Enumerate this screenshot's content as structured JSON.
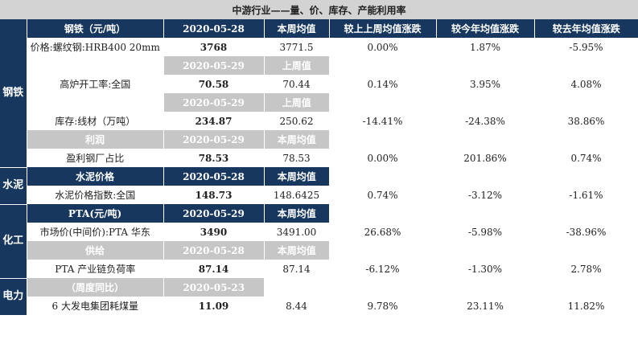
{
  "title": "中游行业——量、价、库存、产能利用率",
  "colors": {
    "header_bg": "#17375e",
    "subheader_bg": "#c6c6c6",
    "title_bg": "#d3d3d3"
  },
  "headers": {
    "category": "钢铁（元/吨）",
    "date": "2020-05-28",
    "weekly_avg": "本周均值",
    "wow": "较上上周均值涨跌",
    "ytd": "较今年均值涨跌",
    "yoy": "较去年均值涨跌"
  },
  "sectors": {
    "steel": "钢铁",
    "cement": "水泥",
    "chemicals": "化工",
    "power": "电力"
  },
  "subheaders": [
    {
      "label": "",
      "date": "2020-05-29",
      "avg": "上周值"
    },
    {
      "label": "",
      "date": "2020-05-29",
      "avg": "上周值"
    },
    {
      "label": "利润",
      "date": "2020-05-29",
      "avg": "本周均值"
    },
    {
      "label": "水泥价格",
      "date": "2020-05-28",
      "avg": "本周均值"
    },
    {
      "label": "PTA(元/吨)",
      "date": "2020-05-29",
      "avg": "本周均值"
    },
    {
      "label": "供给",
      "date": "2020-05-28",
      "avg": "本周均值"
    },
    {
      "label": "（周度同比）",
      "date": "2020-05-23",
      "avg": ""
    }
  ],
  "rows": [
    {
      "label": "价格:螺纹钢:HRB400 20mm",
      "value": "3768",
      "avg": "3771.5",
      "wow": "0.00%",
      "ytd": "1.87%",
      "yoy": "-5.95%"
    },
    {
      "label": "高炉开工率:全国",
      "value": "70.58",
      "avg": "70.44",
      "wow": "0.14%",
      "ytd": "3.95%",
      "yoy": "4.08%"
    },
    {
      "label": "库存:线材（万吨）",
      "value": "234.87",
      "avg": "250.62",
      "wow": "-14.41%",
      "ytd": "-24.38%",
      "yoy": "38.86%"
    },
    {
      "label": "盈利钢厂占比",
      "value": "78.53",
      "avg": "78.53",
      "wow": "0.00%",
      "ytd": "201.86%",
      "yoy": "0.74%"
    },
    {
      "label": "水泥价格指数:全国",
      "value": "148.73",
      "avg": "148.6425",
      "wow": "0.74%",
      "ytd": "-3.12%",
      "yoy": "-1.61%"
    },
    {
      "label": "市场价(中间价):PTA 华东",
      "value": "3490",
      "avg": "3491.00",
      "wow": "26.68%",
      "ytd": "-5.98%",
      "yoy": "-38.96%"
    },
    {
      "label": "PTA 产业链负荷率",
      "value": "87.14",
      "avg": "87.14",
      "wow": "-6.12%",
      "ytd": "-1.30%",
      "yoy": "2.78%"
    },
    {
      "label": "6 大发电集团耗煤量",
      "value": "11.09",
      "avg": "8.44",
      "wow": "9.78%",
      "ytd": "23.11%",
      "yoy": "11.82%"
    }
  ]
}
